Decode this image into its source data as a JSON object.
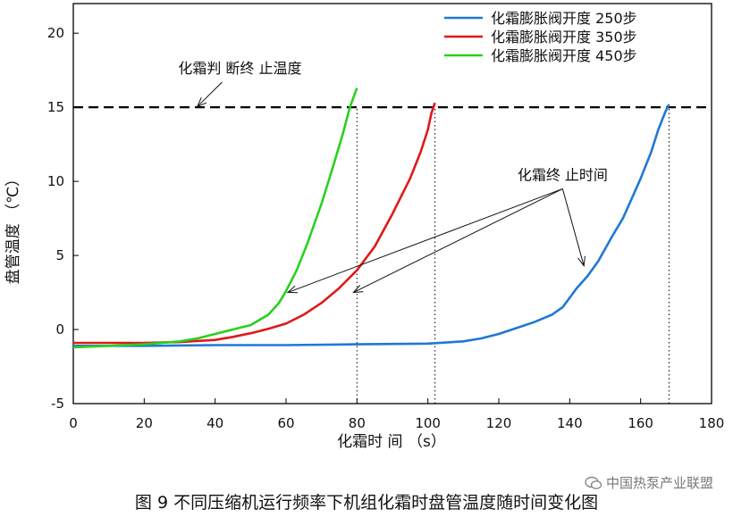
{
  "chart_data": {
    "type": "line",
    "xlabel": "化霜时 间 （s）",
    "ylabel": "盘管温度 （℃）",
    "xlim": [
      0,
      180
    ],
    "ylim": [
      -5,
      22
    ],
    "xticks": [
      0,
      20,
      40,
      60,
      80,
      100,
      120,
      140,
      160,
      180
    ],
    "yticks": [
      -5,
      0,
      5,
      10,
      15,
      20
    ],
    "legend_position": "top-right",
    "grid": false,
    "series": [
      {
        "name": "化霜膨胀阀开度 250步",
        "color": "#1f78d4",
        "x": [
          0,
          10,
          20,
          40,
          60,
          80,
          100,
          110,
          115,
          120,
          125,
          130,
          135,
          138,
          142,
          145,
          148,
          152,
          155,
          158,
          160,
          163,
          165,
          167,
          168
        ],
        "y": [
          -1.1,
          -1.1,
          -1.1,
          -1.05,
          -1.05,
          -1.0,
          -0.95,
          -0.8,
          -0.6,
          -0.3,
          0.1,
          0.5,
          1.0,
          1.5,
          2.8,
          3.6,
          4.6,
          6.3,
          7.5,
          9.1,
          10.2,
          12.0,
          13.5,
          14.7,
          15.2
        ]
      },
      {
        "name": "化霜膨胀阀开度 350步",
        "color": "#e01818",
        "x": [
          0,
          20,
          30,
          40,
          45,
          50,
          55,
          60,
          65,
          70,
          75,
          80,
          85,
          90,
          95,
          98,
          100,
          101,
          102
        ],
        "y": [
          -0.9,
          -0.9,
          -0.85,
          -0.7,
          -0.5,
          -0.25,
          0.05,
          0.4,
          1.0,
          1.8,
          2.8,
          4.0,
          5.6,
          7.8,
          10.2,
          12.0,
          13.5,
          14.6,
          15.3
        ]
      },
      {
        "name": "化霜膨胀阀开度 450步",
        "color": "#29d11d",
        "x": [
          0,
          10,
          20,
          30,
          35,
          40,
          45,
          50,
          55,
          58,
          60,
          63,
          66,
          70,
          73,
          76,
          78,
          80
        ],
        "y": [
          -1.2,
          -1.1,
          -1.0,
          -0.8,
          -0.6,
          -0.3,
          0.0,
          0.3,
          1.0,
          1.8,
          2.6,
          4.0,
          5.8,
          8.5,
          10.8,
          13.2,
          15.0,
          16.3
        ]
      }
    ],
    "reference_lines": [
      {
        "type": "horizontal",
        "y": 15,
        "style": "dashed",
        "color": "#000000"
      },
      {
        "type": "vertical",
        "x": 80,
        "style": "dotted",
        "color": "#000000"
      },
      {
        "type": "vertical",
        "x": 102,
        "style": "dotted",
        "color": "#000000"
      },
      {
        "type": "vertical",
        "x": 168,
        "style": "dotted",
        "color": "#000000"
      }
    ],
    "annotations": [
      {
        "text": "化霜判 断终 止温度",
        "x": 47,
        "y": 17.3,
        "arrow_to": [
          35,
          15.05
        ]
      },
      {
        "text": "化霜终 止时间",
        "x": 138,
        "y": 10.1,
        "arrows_to": [
          [
            60.5,
            2.5
          ],
          [
            79,
            2.5
          ],
          [
            144,
            4.3
          ]
        ]
      }
    ]
  },
  "caption": "图 9 不同压缩机运行频率下机组化霜时盘管温度随时间变化图",
  "watermark": "中国热泵产业联盟"
}
